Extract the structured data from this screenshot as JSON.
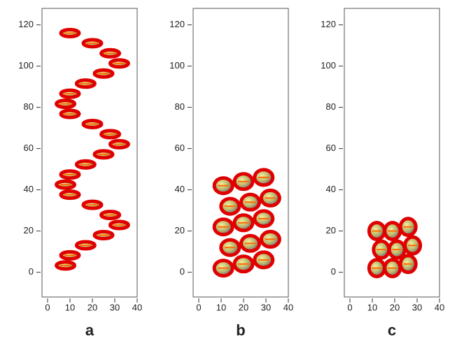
{
  "panels": [
    {
      "label": "a",
      "xlim": [
        -2.5,
        40
      ],
      "ylim": [
        -12,
        128
      ],
      "xticks": [
        0,
        10,
        20,
        30,
        40
      ],
      "yticks": [
        0,
        20,
        40,
        60,
        80,
        100,
        120
      ]
    },
    {
      "label": "b",
      "xlim": [
        -2.5,
        40
      ],
      "ylim": [
        -12,
        128
      ],
      "xticks": [
        0,
        10,
        20,
        30,
        40
      ],
      "yticks": [
        0,
        20,
        40,
        60,
        80,
        100,
        120
      ]
    },
    {
      "label": "c",
      "xlim": [
        -2.5,
        40
      ],
      "ylim": [
        -12,
        128
      ],
      "xticks": [
        0,
        10,
        20,
        30,
        40
      ],
      "yticks": [
        0,
        20,
        40,
        60,
        80,
        100,
        120
      ]
    }
  ]
}
